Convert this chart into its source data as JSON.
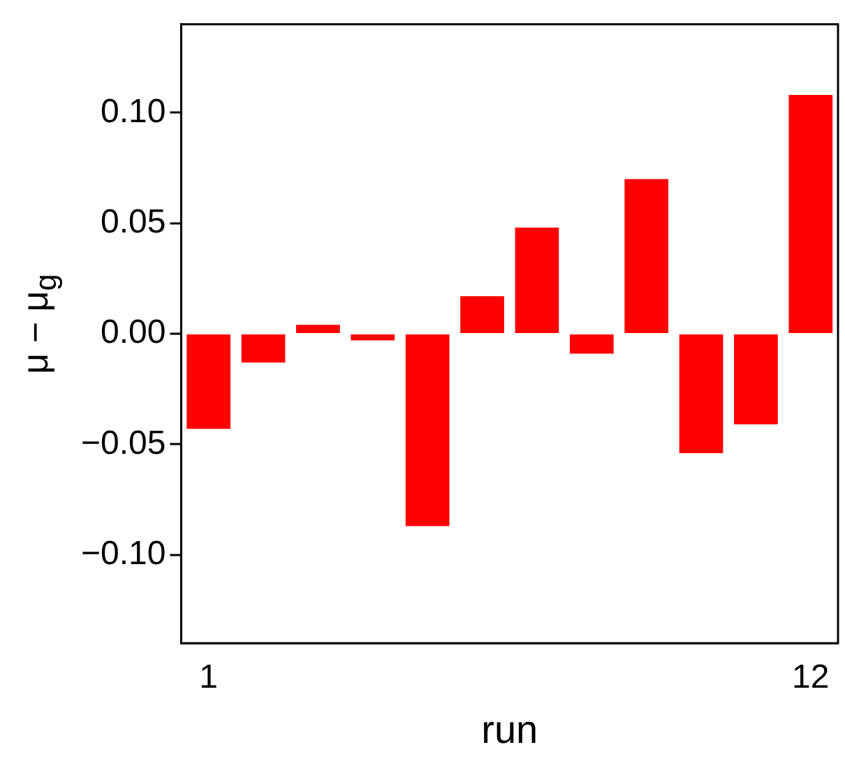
{
  "chart_data": {
    "type": "bar",
    "xlabel": "run",
    "ylabel": "μ − μ$_{g}$",
    "categories": [
      "1",
      null,
      null,
      null,
      null,
      null,
      null,
      null,
      null,
      null,
      null,
      "12"
    ],
    "values": [
      -0.043,
      -0.013,
      0.004,
      -0.003,
      -0.087,
      0.017,
      0.048,
      -0.009,
      0.07,
      -0.054,
      -0.041,
      0.108
    ],
    "color": "#ff0000",
    "ylim": [
      -0.14,
      0.14
    ],
    "yticks": [
      {
        "value": -0.1,
        "label": "−0.10"
      },
      {
        "value": -0.05,
        "label": "−0.05"
      },
      {
        "value": 0,
        "label": "0.00"
      },
      {
        "value": 0.05,
        "label": "0.05"
      },
      {
        "value": 0.1,
        "label": "0.10"
      }
    ],
    "grid": false,
    "legend": false
  }
}
